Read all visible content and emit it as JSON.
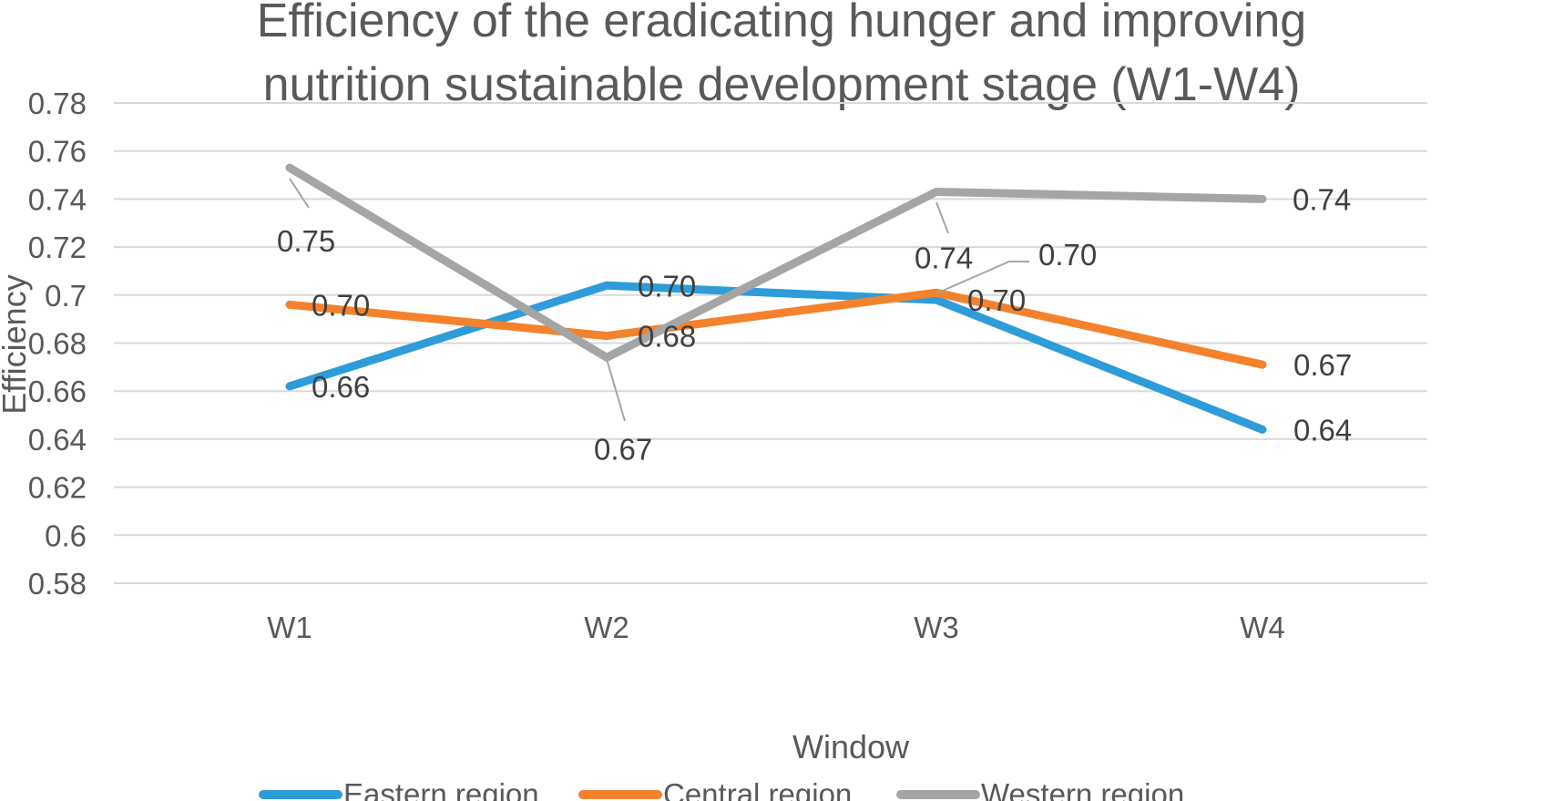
{
  "chart_data": {
    "type": "line",
    "title": [
      "Efficiency of the eradicating hunger and improving",
      "nutrition sustainable development stage (W1-W4)"
    ],
    "xlabel": "Window",
    "ylabel": "Efficiency",
    "categories": [
      "W1",
      "W2",
      "W3",
      "W4"
    ],
    "ylim": [
      0.58,
      0.78
    ],
    "yticks": [
      "0.78",
      "0.76",
      "0.74",
      "0.72",
      "0.7",
      "0.68",
      "0.66",
      "0.64",
      "0.62",
      "0.6",
      "0.58"
    ],
    "grid": true,
    "legend_position": "bottom",
    "series": [
      {
        "name": "Eastern region",
        "color": "#2E9CD8",
        "values": [
          0.662,
          0.704,
          0.698,
          0.644
        ],
        "labels": [
          "0.66",
          "0.70",
          "0.70",
          "0.64"
        ]
      },
      {
        "name": "Central region",
        "color": "#F4822C",
        "values": [
          0.696,
          0.683,
          0.701,
          0.671
        ],
        "labels": [
          "0.70",
          "0.68",
          "0.70",
          "0.67"
        ]
      },
      {
        "name": "Western region",
        "color": "#A5A5A5",
        "values": [
          0.753,
          0.674,
          0.743,
          0.74
        ],
        "labels": [
          "0.75",
          "0.67",
          "0.74",
          "0.74"
        ]
      }
    ]
  }
}
